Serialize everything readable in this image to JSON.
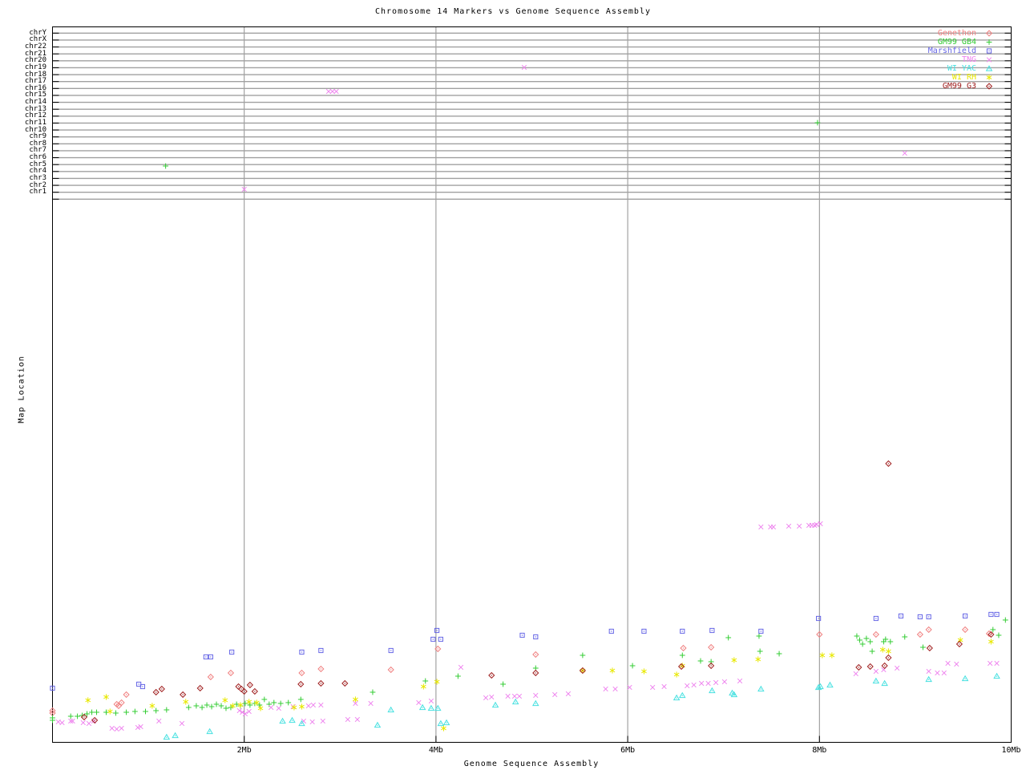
{
  "title": "Chromosome 14 Markers vs Genome Sequence Assembly",
  "x_axis": {
    "label": "Genome Sequence Assembly",
    "tick_labels": [
      "2Mb",
      "4Mb",
      "6Mb",
      "8Mb",
      "10Mb"
    ],
    "tick_values": [
      2,
      4,
      6,
      8,
      10
    ],
    "range_mb": [
      0,
      10
    ],
    "grid": true
  },
  "y_axis": {
    "label": "Map Location",
    "row_labels": [
      "chrY",
      "chrX",
      "chr22",
      "chr21",
      "chr20",
      "chr19",
      "chr18",
      "chr17",
      "chr16",
      "chr15",
      "chr14",
      "chr13",
      "chr12",
      "chr11",
      "chr10",
      "chr9",
      "chr8",
      "chr7",
      "chr6",
      "chr5",
      "chr4",
      "chr3",
      "chr2",
      "chr1"
    ],
    "numeric_ticks_visible": false
  },
  "legend_position": "top-right",
  "colors": {
    "frame": "#000000",
    "chromosome_grid": "#a0a0a0",
    "mb_grid": "#909090",
    "background": "#ffffff"
  },
  "chart_data": {
    "type": "scatter",
    "title": "Chromosome 14 Markers vs Genome Sequence Assembly",
    "xlabel": "Genome Sequence Assembly",
    "ylabel": "Map Location",
    "x_unit": "Mb",
    "y_unit": "screen y-pixel (map location axis unlabeled; chromosome rows occupy top band y=41..248, chr14 map band rises toward y=760 at right)",
    "xlim_mb": [
      0,
      10
    ],
    "series": [
      {
        "name": "Genethon",
        "marker": "open-diamond",
        "color": "#F08080",
        "points": [
          [
            0.0,
            886
          ],
          [
            0.0,
            889
          ],
          [
            0.67,
            878
          ],
          [
            0.69,
            880
          ],
          [
            0.72,
            876
          ],
          [
            0.77,
            866
          ],
          [
            1.65,
            844
          ],
          [
            1.86,
            839
          ],
          [
            2.6,
            839
          ],
          [
            2.8,
            834
          ],
          [
            3.53,
            835
          ],
          [
            4.02,
            809
          ],
          [
            5.04,
            816
          ],
          [
            6.58,
            808
          ],
          [
            6.87,
            807
          ],
          [
            8.0,
            791
          ],
          [
            8.59,
            791
          ],
          [
            9.05,
            791
          ],
          [
            9.14,
            785
          ],
          [
            9.52,
            785
          ],
          [
            9.77,
            790
          ]
        ]
      },
      {
        "name": "GM99 GB4",
        "marker": "plus",
        "color": "#33CC33",
        "points": [
          [
            0.0,
            895
          ],
          [
            0.0,
            898
          ],
          [
            0.19,
            893
          ],
          [
            0.26,
            893
          ],
          [
            0.31,
            892
          ],
          [
            0.36,
            890
          ],
          [
            0.41,
            888
          ],
          [
            0.46,
            888
          ],
          [
            0.56,
            888
          ],
          [
            0.66,
            889
          ],
          [
            0.77,
            888
          ],
          [
            0.86,
            887
          ],
          [
            0.97,
            887
          ],
          [
            1.08,
            886
          ],
          [
            1.18,
            207
          ],
          [
            1.19,
            885
          ],
          [
            1.42,
            882
          ],
          [
            1.5,
            880
          ],
          [
            1.56,
            882
          ],
          [
            1.61,
            879
          ],
          [
            1.66,
            881
          ],
          [
            1.71,
            878
          ],
          [
            1.76,
            880
          ],
          [
            1.81,
            883
          ],
          [
            1.86,
            882
          ],
          [
            1.92,
            878
          ],
          [
            1.96,
            880
          ],
          [
            2.01,
            877
          ],
          [
            2.06,
            879
          ],
          [
            2.11,
            877
          ],
          [
            2.16,
            879
          ],
          [
            2.21,
            872
          ],
          [
            2.26,
            878
          ],
          [
            2.31,
            876
          ],
          [
            2.38,
            877
          ],
          [
            2.46,
            876
          ],
          [
            2.59,
            872
          ],
          [
            3.34,
            863
          ],
          [
            3.89,
            849
          ],
          [
            4.23,
            843
          ],
          [
            4.7,
            853
          ],
          [
            5.04,
            833
          ],
          [
            5.53,
            817
          ],
          [
            6.05,
            830
          ],
          [
            6.57,
            817
          ],
          [
            6.76,
            824
          ],
          [
            6.87,
            825
          ],
          [
            7.05,
            795
          ],
          [
            7.37,
            793
          ],
          [
            7.38,
            812
          ],
          [
            7.58,
            815
          ],
          [
            7.98,
            153
          ],
          [
            8.39,
            793
          ],
          [
            8.42,
            798
          ],
          [
            8.45,
            803
          ],
          [
            8.49,
            796
          ],
          [
            8.53,
            800
          ],
          [
            8.55,
            812
          ],
          [
            8.67,
            800
          ],
          [
            8.69,
            797
          ],
          [
            8.74,
            800
          ],
          [
            8.89,
            794
          ],
          [
            9.08,
            807
          ],
          [
            9.81,
            785
          ],
          [
            9.87,
            792
          ],
          [
            9.94,
            773
          ]
        ]
      },
      {
        "name": "Marshfield",
        "marker": "open-square",
        "color": "#6666E6",
        "points": [
          [
            0.0,
            858
          ],
          [
            0.9,
            853
          ],
          [
            0.94,
            856
          ],
          [
            1.6,
            819
          ],
          [
            1.65,
            819
          ],
          [
            1.87,
            813
          ],
          [
            2.6,
            813
          ],
          [
            2.8,
            811
          ],
          [
            3.53,
            811
          ],
          [
            3.97,
            797
          ],
          [
            4.01,
            786
          ],
          [
            4.05,
            797
          ],
          [
            4.9,
            792
          ],
          [
            5.04,
            794
          ],
          [
            5.83,
            787
          ],
          [
            6.17,
            787
          ],
          [
            6.57,
            787
          ],
          [
            6.88,
            786
          ],
          [
            7.39,
            787
          ],
          [
            7.99,
            771
          ],
          [
            8.59,
            771
          ],
          [
            8.85,
            768
          ],
          [
            9.05,
            769
          ],
          [
            9.14,
            769
          ],
          [
            9.52,
            768
          ],
          [
            9.79,
            766
          ],
          [
            9.85,
            766
          ]
        ]
      },
      {
        "name": "TNG",
        "marker": "x-cross",
        "color": "#EE82EE",
        "points": [
          [
            0.06,
            900
          ],
          [
            0.1,
            901
          ],
          [
            0.19,
            899
          ],
          [
            0.21,
            899
          ],
          [
            0.32,
            901
          ],
          [
            0.38,
            902
          ],
          [
            0.43,
            899
          ],
          [
            0.62,
            908
          ],
          [
            0.67,
            909
          ],
          [
            0.72,
            908
          ],
          [
            0.89,
            907
          ],
          [
            0.92,
            906
          ],
          [
            1.11,
            899
          ],
          [
            1.35,
            902
          ],
          [
            1.95,
            886
          ],
          [
            1.98,
            888
          ],
          [
            2.0,
            236
          ],
          [
            2.01,
            890
          ],
          [
            2.05,
            887
          ],
          [
            2.28,
            882
          ],
          [
            2.36,
            883
          ],
          [
            2.51,
            881
          ],
          [
            2.62,
            899
          ],
          [
            2.67,
            880
          ],
          [
            2.71,
            900
          ],
          [
            2.72,
            879
          ],
          [
            2.8,
            879
          ],
          [
            2.82,
            899
          ],
          [
            2.88,
            114
          ],
          [
            2.92,
            114
          ],
          [
            2.96,
            114
          ],
          [
            3.08,
            897
          ],
          [
            3.16,
            877
          ],
          [
            3.18,
            897
          ],
          [
            3.32,
            877
          ],
          [
            3.82,
            876
          ],
          [
            3.95,
            874
          ],
          [
            4.26,
            832
          ],
          [
            4.52,
            870
          ],
          [
            4.58,
            869
          ],
          [
            4.75,
            868
          ],
          [
            4.82,
            868
          ],
          [
            4.87,
            868
          ],
          [
            4.92,
            84
          ],
          [
            5.04,
            867
          ],
          [
            5.24,
            866
          ],
          [
            5.38,
            865
          ],
          [
            5.77,
            859
          ],
          [
            5.87,
            859
          ],
          [
            6.02,
            857
          ],
          [
            6.26,
            857
          ],
          [
            6.38,
            856
          ],
          [
            6.62,
            855
          ],
          [
            6.69,
            854
          ],
          [
            6.77,
            852
          ],
          [
            6.84,
            852
          ],
          [
            6.92,
            851
          ],
          [
            7.01,
            850
          ],
          [
            7.17,
            849
          ],
          [
            7.39,
            657
          ],
          [
            7.49,
            657
          ],
          [
            7.52,
            657
          ],
          [
            7.68,
            656
          ],
          [
            7.79,
            656
          ],
          [
            7.89,
            655
          ],
          [
            7.92,
            655
          ],
          [
            7.95,
            655
          ],
          [
            7.97,
            654
          ],
          [
            8.01,
            653
          ],
          [
            8.38,
            840
          ],
          [
            8.59,
            837
          ],
          [
            8.67,
            835
          ],
          [
            8.81,
            833
          ],
          [
            8.89,
            191
          ],
          [
            9.14,
            837
          ],
          [
            9.23,
            839
          ],
          [
            9.3,
            839
          ],
          [
            9.34,
            827
          ],
          [
            9.43,
            828
          ],
          [
            9.78,
            827
          ],
          [
            9.85,
            827
          ]
        ]
      },
      {
        "name": "WI YAC",
        "marker": "open-triangle",
        "color": "#44E0E0",
        "points": [
          [
            1.19,
            919
          ],
          [
            1.28,
            917
          ],
          [
            1.64,
            912
          ],
          [
            2.4,
            899
          ],
          [
            2.5,
            898
          ],
          [
            2.6,
            902
          ],
          [
            3.39,
            904
          ],
          [
            3.53,
            885
          ],
          [
            3.86,
            882
          ],
          [
            3.95,
            883
          ],
          [
            4.02,
            883
          ],
          [
            4.05,
            902
          ],
          [
            4.11,
            901
          ],
          [
            4.62,
            879
          ],
          [
            4.83,
            875
          ],
          [
            5.04,
            877
          ],
          [
            6.51,
            870
          ],
          [
            6.57,
            867
          ],
          [
            6.88,
            861
          ],
          [
            7.09,
            864
          ],
          [
            7.11,
            866
          ],
          [
            7.39,
            859
          ],
          [
            7.99,
            857
          ],
          [
            8.01,
            856
          ],
          [
            8.11,
            854
          ],
          [
            8.59,
            849
          ],
          [
            8.68,
            852
          ],
          [
            9.14,
            847
          ],
          [
            9.52,
            846
          ],
          [
            9.85,
            843
          ]
        ]
      },
      {
        "name": "WI RH",
        "marker": "asterisk",
        "color": "#E8E800",
        "points": [
          [
            0.37,
            873
          ],
          [
            0.56,
            869
          ],
          [
            0.6,
            887
          ],
          [
            1.04,
            880
          ],
          [
            1.39,
            875
          ],
          [
            1.8,
            873
          ],
          [
            1.88,
            880
          ],
          [
            1.96,
            879
          ],
          [
            2.05,
            875
          ],
          [
            2.13,
            876
          ],
          [
            2.17,
            883
          ],
          [
            2.52,
            882
          ],
          [
            2.6,
            881
          ],
          [
            3.16,
            872
          ],
          [
            3.87,
            856
          ],
          [
            4.01,
            850
          ],
          [
            4.08,
            908
          ],
          [
            5.53,
            836
          ],
          [
            5.84,
            836
          ],
          [
            6.17,
            837
          ],
          [
            6.51,
            841
          ],
          [
            6.57,
            830
          ],
          [
            7.11,
            823
          ],
          [
            7.36,
            822
          ],
          [
            8.03,
            817
          ],
          [
            8.13,
            817
          ],
          [
            8.66,
            810
          ],
          [
            8.72,
            812
          ],
          [
            9.47,
            798
          ],
          [
            9.79,
            800
          ]
        ]
      },
      {
        "name": "GM99 G3",
        "marker": "open-diamond",
        "color": "#A02020",
        "points": [
          [
            0.33,
            894
          ],
          [
            0.44,
            898
          ],
          [
            1.08,
            863
          ],
          [
            1.14,
            859
          ],
          [
            1.36,
            866
          ],
          [
            1.54,
            858
          ],
          [
            1.94,
            856
          ],
          [
            1.97,
            859
          ],
          [
            2.0,
            862
          ],
          [
            2.06,
            854
          ],
          [
            2.11,
            862
          ],
          [
            2.59,
            853
          ],
          [
            2.8,
            852
          ],
          [
            3.05,
            852
          ],
          [
            4.58,
            842
          ],
          [
            5.04,
            839
          ],
          [
            5.53,
            836
          ],
          [
            6.56,
            831
          ],
          [
            6.87,
            830
          ],
          [
            8.41,
            832
          ],
          [
            8.53,
            831
          ],
          [
            8.68,
            830
          ],
          [
            8.72,
            820
          ],
          [
            8.72,
            578
          ],
          [
            9.15,
            808
          ],
          [
            9.46,
            803
          ],
          [
            9.79,
            791
          ]
        ]
      }
    ],
    "legend_entries": [
      "Genethon",
      "GM99 GB4",
      "Marshfield",
      "TNG",
      "WI YAC",
      "WI RH",
      "GM99 G3"
    ],
    "legend_position": "top-right",
    "grid": true
  }
}
